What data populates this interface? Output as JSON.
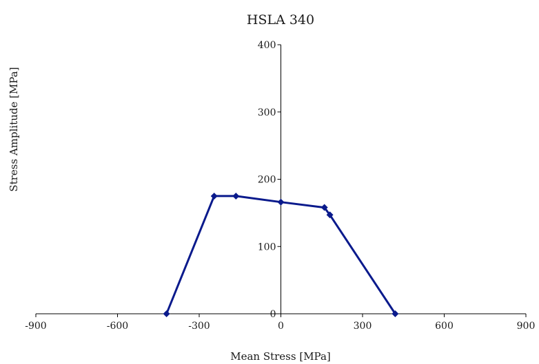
{
  "chart_data": {
    "type": "line",
    "title": "HSLA 340",
    "xlabel": "Mean Stress [MPa]",
    "ylabel": "Stress Amplitude [MPa]",
    "xlim": [
      -900,
      900
    ],
    "ylim": [
      0,
      400
    ],
    "x_ticks": [
      -900,
      -600,
      -300,
      0,
      300,
      600,
      900
    ],
    "y_ticks": [
      0,
      100,
      200,
      300,
      400
    ],
    "grid": false,
    "series": [
      {
        "color": "#0a1a8c",
        "marker": "diamond",
        "points": [
          {
            "x": -420,
            "y": 0
          },
          {
            "x": -245,
            "y": 175
          },
          {
            "x": -165,
            "y": 175
          },
          {
            "x": 0,
            "y": 166
          },
          {
            "x": 160,
            "y": 158
          },
          {
            "x": 180,
            "y": 147
          },
          {
            "x": 420,
            "y": 0
          }
        ]
      }
    ]
  }
}
